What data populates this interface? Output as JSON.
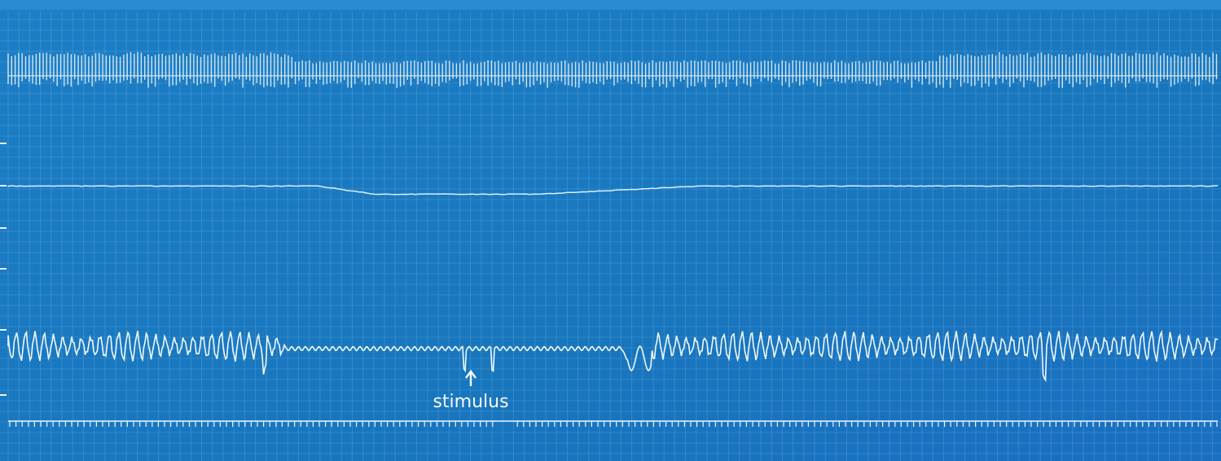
{
  "annotation": "stimulus"
}
